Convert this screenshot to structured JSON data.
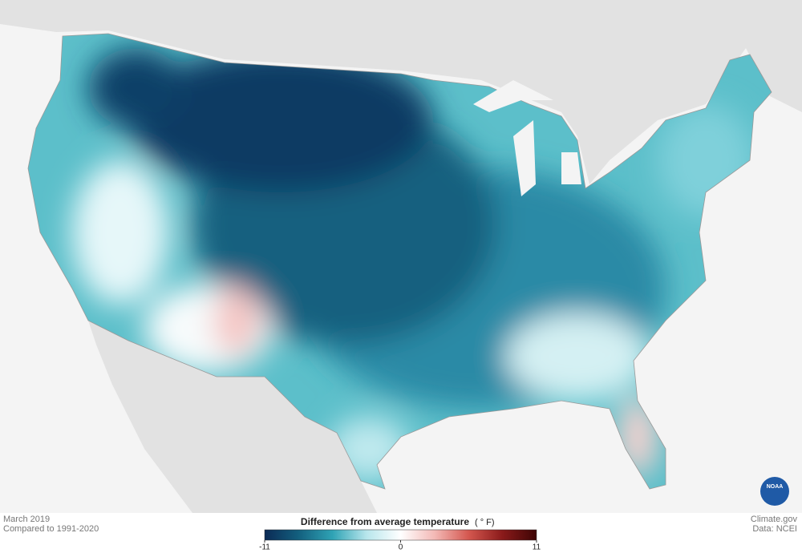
{
  "caption": {
    "period": "March 2019",
    "baseline": "Compared to 1991-2020",
    "site": "Climate.gov",
    "source": "Data: NCEI",
    "logo": "NOAA"
  },
  "legend": {
    "title": "Difference from average temperature",
    "unit": "( ° F)",
    "range": [
      -11,
      11
    ],
    "ticks": [
      -11,
      0,
      11
    ],
    "colors": [
      "#0b2a55",
      "#13607f",
      "#2fa3b5",
      "#b8e6ec",
      "#ffffff",
      "#f3b9b6",
      "#d4574f",
      "#8a1a1a",
      "#3d0404"
    ]
  }
}
